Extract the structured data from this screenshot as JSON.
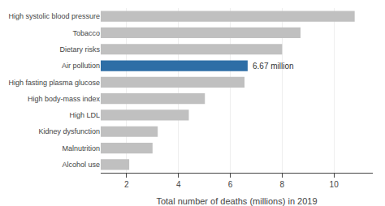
{
  "chart_data": {
    "type": "bar",
    "orientation": "horizontal",
    "categories": [
      "High systolic blood pressure",
      "Tobacco",
      "Dietary risks",
      "Air pollution",
      "High fasting plasma glucose",
      "High body-mass index",
      "High LDL",
      "Kidney dysfunction",
      "Malnutrition",
      "Alcohol use"
    ],
    "values": [
      10.8,
      8.71,
      8.0,
      6.67,
      6.55,
      5.02,
      4.4,
      3.2,
      3.0,
      2.1
    ],
    "colors": [
      "#c0c0c0",
      "#c0c0c0",
      "#c0c0c0",
      "#2e6ea6",
      "#c0c0c0",
      "#c0c0c0",
      "#c0c0c0",
      "#c0c0c0",
      "#c0c0c0",
      "#c0c0c0"
    ],
    "xlabel": "Total number of deaths (millions) in 2019",
    "xlim": [
      1,
      11.5
    ],
    "xticks": [
      2,
      4,
      6,
      8,
      10
    ],
    "grid": true,
    "annotations": [
      {
        "text": "6.67 million",
        "category": "Air pollution"
      }
    ]
  }
}
